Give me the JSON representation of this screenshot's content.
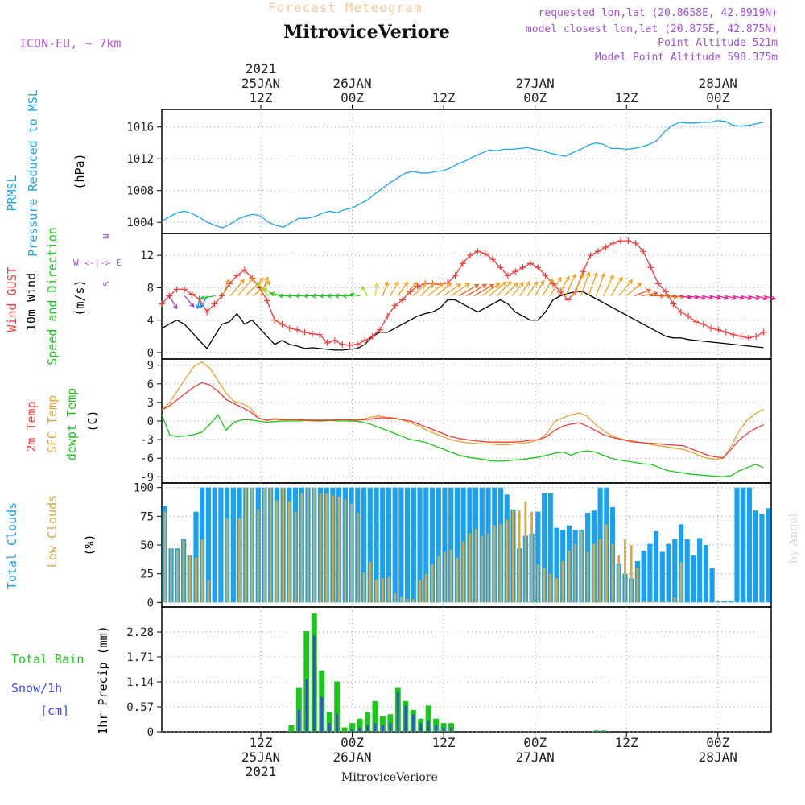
{
  "header": {
    "product": "Forecast Meteogram",
    "station": "MitroviceVeriore",
    "model": "ICON-EU, ~ 7km",
    "requested": "requested lon,lat (20.8658E, 42.8919N)",
    "closest": "model closest lon,lat (20.875E, 42.875N)",
    "altitude": "Point Altitude 521m",
    "model_altitude": "Model Point Altitude 598.375m",
    "credit": "by Angel",
    "footer_station": "MitroviceVeriore"
  },
  "colors": {
    "pressure": "#19a5f0",
    "gust": "#f03c3c",
    "wind": "#000000",
    "wind_label": "#19c819",
    "temp2m": "#f03c3c",
    "sfc": "#e6a532",
    "dewpt": "#19c819",
    "total_cloud": "#19a0f0",
    "low_cloud": "#d2aa46",
    "rain": "#19c819",
    "snow": "#3c46f0",
    "compass": "#a050d2"
  },
  "time_axis": {
    "top_labels": [
      {
        "x": 13,
        "lines": [
          "2021",
          "25JAN",
          "12Z"
        ]
      },
      {
        "x": 25,
        "lines": [
          "26JAN",
          "00Z"
        ]
      },
      {
        "x": 37,
        "lines": [
          "12Z"
        ]
      },
      {
        "x": 49,
        "lines": [
          "27JAN",
          "00Z"
        ]
      },
      {
        "x": 61,
        "lines": [
          "12Z"
        ]
      },
      {
        "x": 73,
        "lines": [
          "28JAN",
          "00Z"
        ]
      }
    ],
    "bottom_labels": [
      {
        "x": 13,
        "lines": [
          "12Z",
          "25JAN",
          "2021"
        ]
      },
      {
        "x": 25,
        "lines": [
          "00Z",
          "26JAN"
        ]
      },
      {
        "x": 37,
        "lines": [
          "12Z"
        ]
      },
      {
        "x": 49,
        "lines": [
          "00Z",
          "27JAN"
        ]
      },
      {
        "x": 61,
        "lines": [
          "12Z"
        ]
      },
      {
        "x": 73,
        "lines": [
          "00Z",
          "28JAN"
        ]
      }
    ]
  },
  "chart_data": [
    {
      "id": "pressure",
      "type": "line",
      "labels": [
        "PRMSL",
        "Pressure Reduced to MSL",
        "(hPa)"
      ],
      "y_ticks": [
        "1004",
        "1008",
        "1012",
        "1016"
      ],
      "ylim": [
        1002.6,
        1018.2
      ],
      "x": [
        0,
        1,
        2,
        3,
        4,
        5,
        6,
        7,
        8,
        9,
        10,
        11,
        12,
        13,
        14,
        15,
        16,
        17,
        18,
        19,
        20,
        21,
        22,
        23,
        24,
        25,
        26,
        27,
        28,
        29,
        30,
        31,
        32,
        33,
        34,
        35,
        36,
        37,
        38,
        39,
        40,
        41,
        42,
        43,
        44,
        45,
        46,
        47,
        48,
        49,
        50,
        51,
        52,
        53,
        54,
        55,
        56,
        57,
        58,
        59,
        60,
        61,
        62,
        63,
        64,
        65,
        66,
        67,
        67.5,
        68,
        69,
        70,
        71,
        72,
        73,
        74,
        75,
        76,
        77,
        78,
        79
      ],
      "values": [
        1004.1,
        1004.7,
        1005.2,
        1005.4,
        1005.1,
        1004.6,
        1004.0,
        1003.6,
        1003.3,
        1003.8,
        1004.4,
        1004.8,
        1005.0,
        1004.8,
        1004.0,
        1003.6,
        1003.4,
        1004.0,
        1004.5,
        1004.5,
        1004.7,
        1005.1,
        1005.4,
        1005.2,
        1005.6,
        1005.8,
        1006.3,
        1006.8,
        1007.6,
        1008.3,
        1009.0,
        1009.6,
        1010.2,
        1010.4,
        1010.2,
        1010.2,
        1010.4,
        1010.5,
        1010.9,
        1011.4,
        1011.8,
        1012.3,
        1012.7,
        1013.1,
        1013.0,
        1013.2,
        1013.2,
        1013.3,
        1013.4,
        1013.2,
        1013.0,
        1012.7,
        1012.5,
        1012.3,
        1012.8,
        1013.2,
        1013.7,
        1014.0,
        1013.8,
        1013.3,
        1013.3,
        1013.2,
        1013.3,
        1013.5,
        1013.8,
        1014.3,
        1015.4,
        1016.2,
        1016.4,
        1016.6,
        1016.5,
        1016.5,
        1016.6,
        1016.6,
        1016.8,
        1016.7,
        1016.2,
        1016.1,
        1016.2,
        1016.4,
        1016.6
      ]
    },
    {
      "id": "wind",
      "type": "line",
      "labels": [
        "Wind GUST",
        "10m Wind",
        "Speed and Direction",
        "(m/s)"
      ],
      "compass": [
        "N",
        "W <-|-> E",
        "S"
      ],
      "y_ticks": [
        "0",
        "4",
        "8",
        "12"
      ],
      "ylim": [
        -0.8,
        14.7
      ],
      "gust": [
        6.0,
        7.0,
        7.8,
        7.8,
        7.2,
        6.6,
        5.0,
        6.0,
        7.0,
        8.5,
        9.5,
        10.2,
        9.2,
        8.0,
        6.4,
        4.0,
        3.5,
        3.0,
        2.8,
        2.5,
        2.3,
        2.2,
        1.2,
        1.5,
        1.0,
        0.9,
        1.0,
        1.5,
        2.0,
        2.8,
        4.5,
        5.8,
        6.5,
        7.5,
        8.2,
        8.5,
        8.5,
        8.4,
        8.6,
        9.5,
        11.0,
        12.0,
        12.5,
        12.2,
        11.5,
        10.5,
        9.5,
        10.0,
        10.5,
        11.0,
        10.5,
        9.5,
        8.5,
        7.5,
        6.5,
        7.5,
        10.0,
        12.0,
        12.5,
        13.0,
        13.5,
        13.8,
        13.8,
        13.5,
        12.5,
        10.5,
        8.5,
        7.5,
        6.0,
        5.0,
        4.5,
        3.8,
        3.5,
        3.0,
        2.8,
        2.5,
        2.2,
        2.0,
        1.8,
        2.0,
        2.5
      ],
      "wind": [
        3.0,
        3.5,
        4.0,
        3.5,
        2.5,
        1.5,
        0.5,
        2.0,
        3.5,
        3.8,
        4.8,
        3.5,
        4.0,
        3.0,
        2.0,
        1.0,
        1.5,
        1.0,
        0.8,
        0.5,
        0.6,
        0.5,
        0.4,
        0.3,
        0.3,
        0.4,
        0.5,
        1.0,
        2.0,
        2.5,
        2.5,
        3.0,
        3.5,
        4.0,
        4.5,
        4.8,
        5.0,
        5.5,
        6.5,
        6.5,
        6.0,
        5.5,
        5.0,
        5.5,
        6.0,
        6.5,
        6.0,
        5.0,
        4.5,
        4.0,
        4.0,
        5.0,
        6.5,
        7.0,
        7.3,
        7.5,
        7.5,
        7.0,
        6.5,
        6.0,
        5.5,
        5.0,
        4.5,
        4.0,
        3.5,
        3.0,
        2.5,
        2.0,
        1.8,
        1.8,
        1.6,
        1.5,
        1.4,
        1.3,
        1.2,
        1.1,
        1.0,
        0.9,
        0.8,
        0.7,
        0.6
      ],
      "arrows": {
        "x": [
          1,
          3,
          5,
          6,
          7,
          8,
          9,
          10,
          11,
          12,
          13,
          14,
          15,
          16,
          17,
          18,
          19,
          20,
          21,
          22,
          23,
          24,
          25,
          26,
          27,
          28,
          29,
          30,
          31,
          32,
          33,
          34,
          35,
          36,
          37,
          38,
          39,
          40,
          41,
          42,
          43,
          44,
          45,
          46,
          47,
          48,
          49,
          50,
          51,
          52,
          53,
          54,
          55,
          56,
          57,
          58,
          59,
          60,
          61,
          62,
          63,
          64,
          65,
          66,
          67,
          68,
          69,
          70,
          71,
          72,
          73,
          74,
          75,
          76,
          77,
          78,
          79
        ],
        "speed": [
          3.5,
          3.3,
          2.8,
          3.0,
          3.4,
          4.5,
          6.0,
          7.0,
          7.5,
          6.5,
          5.5,
          4.5,
          3.5,
          3.0,
          2.5,
          2.2,
          2.0,
          1.8,
          1.6,
          1.5,
          1.5,
          1.4,
          1.4,
          1.5,
          2.0,
          2.8,
          3.5,
          4.0,
          4.3,
          4.6,
          4.8,
          5.0,
          5.2,
          5.5,
          5.8,
          6.2,
          6.5,
          6.6,
          6.5,
          6.3,
          6.0,
          5.5,
          5.0,
          4.6,
          4.4,
          4.4,
          4.6,
          5.2,
          6.0,
          6.5,
          7.0,
          7.2,
          7.4,
          7.3,
          7.0,
          6.6,
          6.2,
          5.8,
          5.2,
          4.6,
          4.0,
          3.5,
          3.0,
          2.7,
          2.4,
          2.2,
          2.0,
          1.9,
          1.8,
          1.8,
          1.9,
          2.0,
          2.1,
          2.2,
          2.3,
          2.4,
          2.5
        ],
        "dir": [
          330,
          320,
          10,
          30,
          80,
          200,
          220,
          220,
          225,
          230,
          200,
          140,
          120,
          100,
          90,
          90,
          90,
          90,
          90,
          90,
          90,
          90,
          90,
          100,
          150,
          190,
          200,
          210,
          215,
          220,
          225,
          225,
          230,
          230,
          235,
          235,
          240,
          240,
          240,
          235,
          230,
          225,
          225,
          220,
          215,
          215,
          210,
          210,
          210,
          210,
          205,
          205,
          200,
          200,
          200,
          205,
          210,
          220,
          230,
          250,
          260,
          270,
          270,
          275,
          275,
          280,
          280,
          285,
          285,
          285,
          285,
          285,
          285,
          285,
          285,
          285,
          285
        ]
      }
    },
    {
      "id": "temperature",
      "type": "line",
      "labels": [
        "2m Temp",
        "SFC Temp",
        "dewpt Temp",
        "(C)"
      ],
      "y_ticks": [
        "-9",
        "-6",
        "-3",
        "0",
        "3",
        "6",
        "9"
      ],
      "ylim": [
        -10.0,
        10.0
      ],
      "t2m": [
        1.8,
        2.5,
        3.5,
        4.5,
        5.5,
        6.2,
        5.8,
        4.8,
        3.5,
        2.8,
        2.2,
        1.5,
        0.5,
        0.1,
        0.3,
        0.2,
        0.2,
        0.2,
        0.1,
        0.1,
        0.1,
        0.1,
        0.2,
        0.2,
        0.1,
        0.2,
        0.3,
        0.5,
        0.5,
        0.4,
        0.2,
        0.0,
        -0.5,
        -1.0,
        -1.5,
        -2.0,
        -2.5,
        -2.8,
        -3.0,
        -3.2,
        -3.3,
        -3.4,
        -3.4,
        -3.4,
        -3.4,
        -3.3,
        -3.1,
        -3.0,
        -2.5,
        -1.5,
        -0.8,
        -0.5,
        -0.3,
        -0.8,
        -1.5,
        -2.2,
        -2.6,
        -2.9,
        -3.2,
        -3.4,
        -3.5,
        -3.6,
        -3.7,
        -3.8,
        -3.9,
        -4.0,
        -4.5,
        -5.0,
        -5.5,
        -5.8,
        -5.9,
        -4.5,
        -3.0,
        -2.0,
        -1.2,
        -0.6
      ],
      "sfc": [
        1.8,
        3.0,
        5.0,
        7.0,
        8.8,
        9.5,
        8.5,
        6.5,
        4.5,
        3.2,
        2.8,
        2.2,
        0.5,
        0.1,
        0.4,
        0.3,
        0.3,
        0.3,
        0.2,
        0.2,
        0.2,
        0.2,
        0.3,
        0.3,
        0.2,
        0.3,
        0.6,
        0.8,
        0.6,
        0.5,
        0.2,
        -0.3,
        -0.8,
        -1.5,
        -2.0,
        -2.5,
        -3.0,
        -3.3,
        -3.5,
        -3.6,
        -3.7,
        -3.7,
        -3.8,
        -3.8,
        -3.7,
        -3.6,
        -3.4,
        -3.0,
        -2.0,
        0.0,
        0.5,
        1.0,
        1.3,
        0.8,
        -0.5,
        -1.5,
        -2.3,
        -2.8,
        -3.1,
        -3.3,
        -3.5,
        -3.8,
        -4.0,
        -4.2,
        -4.4,
        -4.6,
        -5.0,
        -5.6,
        -6.0,
        -6.2,
        -6.0,
        -4.0,
        -1.5,
        0.2,
        1.2,
        1.9
      ],
      "dewpt": [
        1.0,
        -2.3,
        -2.5,
        -2.4,
        -2.2,
        -1.8,
        -0.5,
        1.0,
        -1.5,
        -0.2,
        0.2,
        0.2,
        0.0,
        -0.2,
        -0.1,
        0.0,
        0.0,
        0.0,
        0.1,
        0.0,
        0.0,
        0.1,
        0.0,
        0.0,
        0.0,
        -0.2,
        -0.5,
        -1.0,
        -1.5,
        -2.0,
        -2.5,
        -3.0,
        -3.2,
        -3.5,
        -4.0,
        -4.5,
        -5.0,
        -5.5,
        -5.8,
        -6.0,
        -6.2,
        -6.4,
        -6.5,
        -6.4,
        -6.3,
        -6.2,
        -6.0,
        -5.8,
        -5.5,
        -5.2,
        -5.0,
        -5.5,
        -5.0,
        -4.8,
        -5.0,
        -5.5,
        -6.0,
        -6.3,
        -6.5,
        -6.7,
        -6.9,
        -7.0,
        -7.5,
        -8.0,
        -8.2,
        -8.4,
        -8.6,
        -8.7,
        -8.8,
        -8.9,
        -9.0,
        -8.8,
        -8.0,
        -7.5,
        -7.0,
        -7.5
      ],
      "t_x_start": 0,
      "t_x_end": 79
    },
    {
      "id": "clouds",
      "type": "bar",
      "labels": [
        "Total Clouds",
        "Low Clouds",
        "(%)"
      ],
      "y_ticks": [
        "0",
        "25",
        "50",
        "75",
        "100"
      ],
      "ylim": [
        -4,
        104
      ],
      "total": [
        84,
        47,
        47,
        55,
        41,
        79,
        100,
        100,
        100,
        100,
        100,
        100,
        100,
        100,
        100,
        100,
        100,
        100,
        100,
        100,
        100,
        100,
        100,
        100,
        100,
        100,
        100,
        100,
        100,
        100,
        100,
        100,
        100,
        100,
        100,
        100,
        100,
        100,
        100,
        100,
        100,
        100,
        100,
        100,
        100,
        100,
        100,
        100,
        100,
        100,
        100,
        100,
        100,
        100,
        100,
        94,
        81,
        47,
        58,
        60,
        79,
        95,
        95,
        65,
        63,
        67,
        63,
        63,
        78,
        80,
        100,
        100,
        83,
        34,
        25,
        21,
        36,
        45,
        51,
        62,
        44,
        51,
        55,
        68,
        55,
        41,
        56,
        50,
        30,
        1,
        1,
        1,
        100,
        100,
        100,
        80,
        77,
        82
      ],
      "low": [
        79,
        47,
        46,
        54,
        41,
        39,
        55,
        19,
        0,
        0,
        73,
        0,
        73,
        100,
        100,
        81,
        100,
        100,
        89,
        100,
        88,
        79,
        95,
        100,
        100,
        95,
        95,
        93,
        92,
        90,
        86,
        78,
        26,
        35,
        20,
        21,
        22,
        8,
        5,
        3,
        3,
        20,
        25,
        33,
        40,
        44,
        46,
        39,
        53,
        60,
        64,
        58,
        60,
        67,
        68,
        72,
        80,
        80,
        88,
        79,
        33,
        30,
        25,
        21,
        36,
        45,
        51,
        62,
        44,
        51,
        55,
        68,
        51,
        41,
        55,
        50,
        30,
        1,
        1,
        1,
        1,
        1,
        4,
        35
      ],
      "note": "bars drawn hourly"
    },
    {
      "id": "precip",
      "type": "bar",
      "labels": [
        "Total Rain",
        "Snow/1h",
        "[cm]",
        "1hr Precip (mm)"
      ],
      "y_ticks": [
        "0",
        "0.57",
        "1.14",
        "1.71",
        "2.28"
      ],
      "ylim": [
        0,
        2.85
      ],
      "rain_x": [
        17,
        18,
        19,
        20,
        21,
        22,
        23,
        24,
        25,
        26,
        27,
        28,
        29,
        30,
        31,
        32,
        33,
        34,
        35,
        36,
        37,
        38,
        39,
        40,
        41,
        42,
        43,
        57,
        58
      ],
      "rain": [
        0.15,
        1.0,
        2.3,
        2.7,
        1.4,
        0.45,
        1.15,
        0.1,
        0.2,
        0.3,
        0.45,
        0.7,
        0.35,
        0.4,
        1.0,
        0.7,
        0.5,
        0.3,
        0.6,
        0.3,
        0.2,
        0.2,
        0.0,
        0.0,
        0.0,
        0.0,
        0.0,
        0.03,
        0.03
      ],
      "snow": [
        0.0,
        0.5,
        1.2,
        2.2,
        0.8,
        0.2,
        0.4,
        0.0,
        0.05,
        0.1,
        0.15,
        0.2,
        0.15,
        0.2,
        0.9,
        0.6,
        0.4,
        0.2,
        0.25,
        0.15,
        0.1,
        0.1,
        0.0,
        0.0,
        0.0,
        0.0,
        0.0,
        0.02,
        0.02
      ]
    }
  ]
}
